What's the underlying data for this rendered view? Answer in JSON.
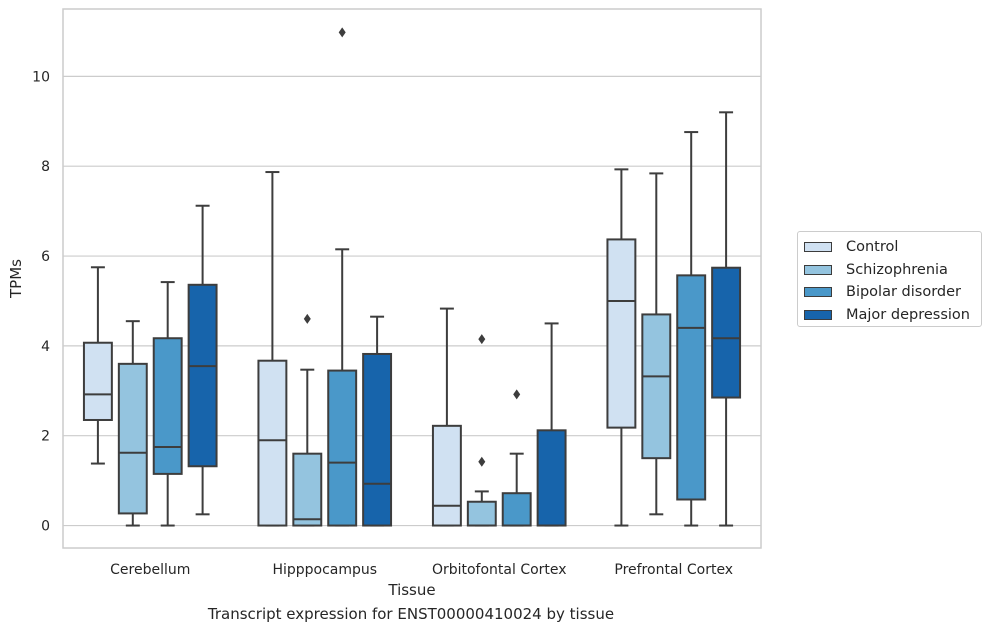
{
  "caption": "Transcript expression for ENST00000410024 by tissue",
  "legend": {
    "entries": [
      {
        "label": "Control",
        "color": "#d0e1f2"
      },
      {
        "label": "Schizophrenia",
        "color": "#94c4df"
      },
      {
        "label": "Bipolar disorder",
        "color": "#4a98c9"
      },
      {
        "label": "Major depression",
        "color": "#1764ab"
      }
    ]
  },
  "chart_data": {
    "type": "box",
    "xlabel": "Tissue",
    "ylabel": "TPMs",
    "ylim": [
      -0.5,
      11.5
    ],
    "yticks": [
      0,
      2,
      4,
      6,
      8,
      10
    ],
    "grid": true,
    "legend_placement": "right",
    "categories": [
      "Cerebellum",
      "Hipppocampus",
      "Orbitofontal Cortex",
      "Prefrontal Cortex"
    ],
    "series": [
      {
        "name": "Control",
        "color": "#d0e1f2",
        "boxes": [
          {
            "whislo": 1.38,
            "q1": 2.35,
            "med": 2.92,
            "q3": 4.07,
            "whishi": 5.75,
            "fliers": []
          },
          {
            "whislo": 0.0,
            "q1": 0.0,
            "med": 1.9,
            "q3": 3.67,
            "whishi": 7.87,
            "fliers": []
          },
          {
            "whislo": 0.0,
            "q1": 0.0,
            "med": 0.44,
            "q3": 2.22,
            "whishi": 4.83,
            "fliers": []
          },
          {
            "whislo": 0.0,
            "q1": 2.18,
            "med": 5.0,
            "q3": 6.37,
            "whishi": 7.93,
            "fliers": []
          }
        ]
      },
      {
        "name": "Schizophrenia",
        "color": "#94c4df",
        "boxes": [
          {
            "whislo": 0.0,
            "q1": 0.27,
            "med": 1.62,
            "q3": 3.6,
            "whishi": 4.55,
            "fliers": []
          },
          {
            "whislo": 0.0,
            "q1": 0.0,
            "med": 0.14,
            "q3": 1.6,
            "whishi": 3.47,
            "fliers": [
              4.6
            ]
          },
          {
            "whislo": 0.0,
            "q1": 0.0,
            "med": 0.0,
            "q3": 0.53,
            "whishi": 0.76,
            "fliers": [
              1.42,
              4.15
            ]
          },
          {
            "whislo": 0.25,
            "q1": 1.5,
            "med": 3.32,
            "q3": 4.7,
            "whishi": 7.84,
            "fliers": []
          }
        ]
      },
      {
        "name": "Bipolar disorder",
        "color": "#4a98c9",
        "boxes": [
          {
            "whislo": 0.0,
            "q1": 1.15,
            "med": 1.75,
            "q3": 4.17,
            "whishi": 5.42,
            "fliers": []
          },
          {
            "whislo": 0.0,
            "q1": 0.0,
            "med": 1.4,
            "q3": 3.45,
            "whishi": 6.15,
            "fliers": [
              10.98
            ]
          },
          {
            "whislo": 0.0,
            "q1": 0.0,
            "med": 0.0,
            "q3": 0.72,
            "whishi": 1.6,
            "fliers": [
              2.92
            ]
          },
          {
            "whislo": 0.0,
            "q1": 0.58,
            "med": 4.4,
            "q3": 5.57,
            "whishi": 8.76,
            "fliers": []
          }
        ]
      },
      {
        "name": "Major depression",
        "color": "#1764ab",
        "boxes": [
          {
            "whislo": 0.25,
            "q1": 1.32,
            "med": 3.55,
            "q3": 5.36,
            "whishi": 7.12,
            "fliers": []
          },
          {
            "whislo": 0.0,
            "q1": 0.0,
            "med": 0.93,
            "q3": 3.82,
            "whishi": 4.65,
            "fliers": []
          },
          {
            "whislo": 0.0,
            "q1": 0.0,
            "med": 0.0,
            "q3": 2.12,
            "whishi": 4.5,
            "fliers": []
          },
          {
            "whislo": 0.0,
            "q1": 2.85,
            "med": 4.17,
            "q3": 5.74,
            "whishi": 9.2,
            "fliers": []
          }
        ]
      }
    ]
  }
}
